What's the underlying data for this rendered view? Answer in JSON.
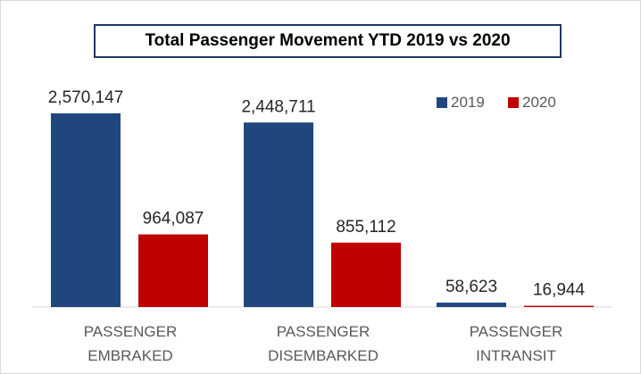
{
  "chart_data": {
    "type": "bar",
    "title": "Total Passenger Movement YTD 2019 vs 2020",
    "categories": [
      "PASSENGER EMBRAKED",
      "PASSENGER DISEMBARKED",
      "PASSENGER INTRANSIT"
    ],
    "series": [
      {
        "name": "2019",
        "color": "#1f477d",
        "values": [
          2570147,
          2448711,
          58623
        ],
        "value_labels": [
          "2,570,147",
          "2,448,711",
          "58,623"
        ]
      },
      {
        "name": "2020",
        "color": "#c00000",
        "values": [
          964087,
          855112,
          16944
        ],
        "value_labels": [
          "964,087",
          "855,112",
          "16,944"
        ]
      }
    ],
    "legend": "top-right"
  }
}
